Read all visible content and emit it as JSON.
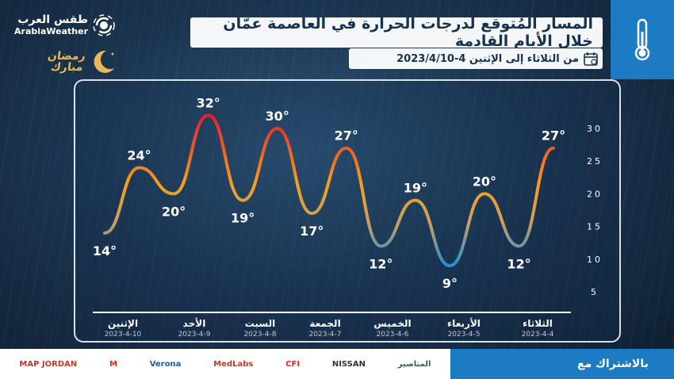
{
  "header": {
    "title": "المسار المُتوقع لدرجات الحرارة في العاصمة عمّان خلال الأيام القادمة",
    "subtitle": "من الثلاثاء إلى الإثنين  4-2023/4/10",
    "icon": "thermometer-icon",
    "calendar_icon": "calendar-icon"
  },
  "logo": {
    "arabic": "طقس العرب",
    "english": "ArabiaWeather"
  },
  "ramadan": {
    "text_line1": "رمضان",
    "text_line2": "مبارك"
  },
  "chart_data": {
    "type": "line",
    "smooth": true,
    "title": "المسار المُتوقع لدرجات الحرارة في العاصمة عمّان خلال الأيام القادمة",
    "xlabel": "",
    "ylabel": "",
    "ylim": [
      5,
      30
    ],
    "yticks": [
      5,
      10,
      15,
      20,
      25,
      30
    ],
    "temp_unit": "°",
    "x_direction": "right-to-left",
    "points": [
      27,
      12,
      20,
      9,
      19,
      12,
      27,
      17,
      30,
      19,
      32,
      20,
      24,
      14
    ],
    "point_labels": [
      "27°",
      "12°",
      "20°",
      "9°",
      "19°",
      "12°",
      "27°",
      "17°",
      "30°",
      "19°",
      "32°",
      "20°",
      "24°",
      "14°"
    ],
    "days": [
      {
        "name": "الثلاثاء",
        "date": "2023-4-4"
      },
      {
        "name": "الأربعاء",
        "date": "2023-4-5"
      },
      {
        "name": "الخميس",
        "date": "2023-4-6"
      },
      {
        "name": "الجمعة",
        "date": "2023-4-7"
      },
      {
        "name": "السبت",
        "date": "2023-4-8"
      },
      {
        "name": "الأحد",
        "date": "2023-4-9"
      },
      {
        "name": "الإثنين",
        "date": "2023-4-10"
      }
    ],
    "colors": {
      "cold": "#1e8fd8",
      "mild": "#f5a020",
      "hot": "#e8202a"
    }
  },
  "footer": {
    "with_label": "بالاشتراك مع",
    "sponsors": [
      {
        "name": "MAP JORDAN",
        "color": "#c0392b"
      },
      {
        "name": "M",
        "color": "#da291c"
      },
      {
        "name": "Verona",
        "color": "#1f5aa6"
      },
      {
        "name": "MedLabs",
        "color": "#c0392b"
      },
      {
        "name": "CFI",
        "color": "#e02a26"
      },
      {
        "name": "NISSAN",
        "color": "#333333"
      },
      {
        "name": "المناصير",
        "color": "#2d6a3e"
      }
    ]
  }
}
